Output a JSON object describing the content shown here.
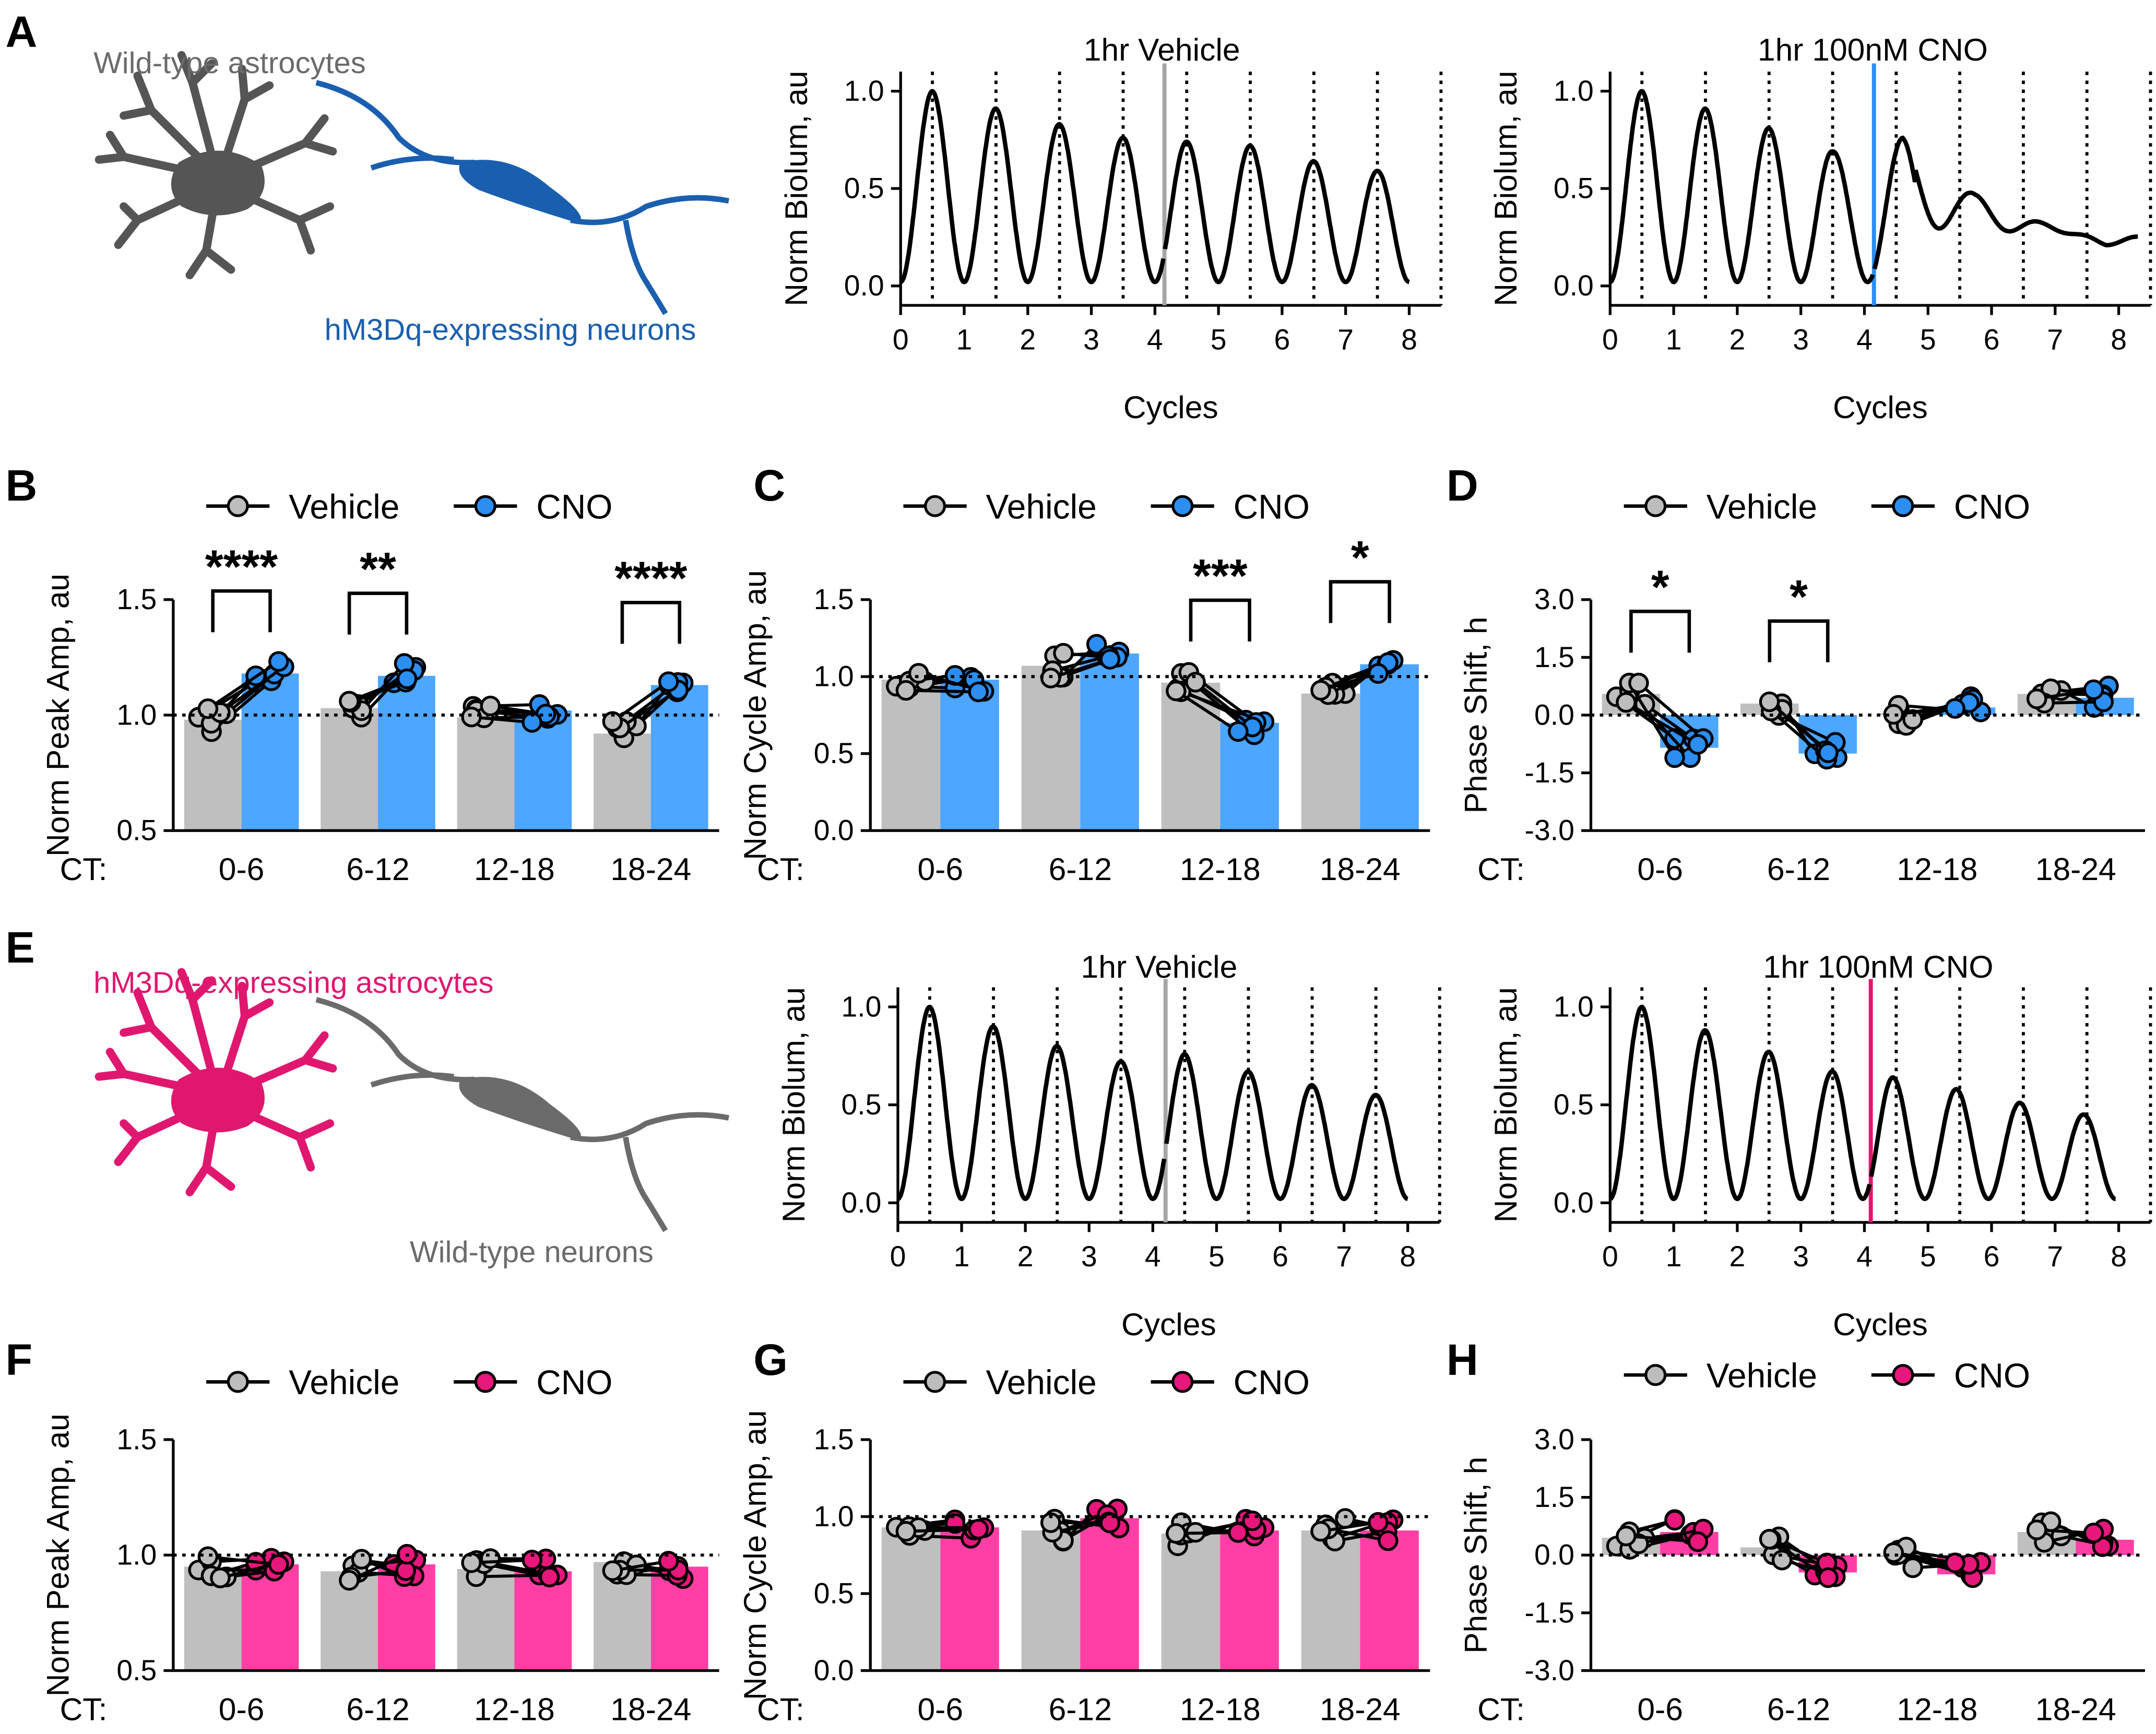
{
  "colors": {
    "vehicle": "#bfbfbf",
    "vehicle_dot": "#bdbdbd",
    "cno_blue": "#4da6ff",
    "cno_blue_dot": "#2b8ef0",
    "cno_pink": "#ff3fa6",
    "cno_pink_dot": "#e8177c",
    "astro_grey": "#555555",
    "neuron_blue": "#1a5faf",
    "astro_pink": "#e0176f",
    "neuron_grey": "#6b6b6b",
    "line": "#000000",
    "marker_grey": "#a6a6a6",
    "marker_blue": "#2b8ef0",
    "marker_pink": "#e0176f"
  },
  "panel_letters": {
    "A": "A",
    "B": "B",
    "C": "C",
    "D": "D",
    "E": "E",
    "F": "F",
    "G": "G",
    "H": "H"
  },
  "legend_labels": {
    "vehicle": "Vehicle",
    "cno": "CNO"
  },
  "ct_label": "CT:",
  "schematics": {
    "A": {
      "astro_label": "Wild-type astrocytes",
      "neuron_label": "hM3Dq-expressing neurons"
    },
    "E": {
      "astro_label": "hM3Dq-expressing astrocytes",
      "neuron_label": "Wild-type neurons"
    }
  },
  "chart_data": [
    {
      "id": "A-vehicle",
      "type": "line",
      "title": "1hr Vehicle",
      "xlabel": "Cycles",
      "ylabel": "Norm Biolum, au",
      "xlim": [
        0,
        8.5
      ],
      "ylim": [
        -0.1,
        1.1
      ],
      "xticks": [
        0,
        1,
        2,
        3,
        4,
        5,
        6,
        7,
        8
      ],
      "yticks": [
        0.0,
        0.5,
        1.0
      ],
      "ytick_labels": [
        "0.0",
        "0.5",
        "1.0"
      ],
      "peak_lines": [
        0.5,
        1.5,
        2.5,
        3.5,
        4.5,
        5.5,
        6.5,
        7.5,
        8.5
      ],
      "treatment_at": 4.15,
      "peaks": [
        {
          "x": 0.5,
          "y": 1.0
        },
        {
          "x": 1.5,
          "y": 0.91
        },
        {
          "x": 2.5,
          "y": 0.83
        },
        {
          "x": 3.5,
          "y": 0.76
        },
        {
          "x": 4.5,
          "y": 0.74
        },
        {
          "x": 5.5,
          "y": 0.72
        },
        {
          "x": 6.5,
          "y": 0.64
        },
        {
          "x": 7.5,
          "y": 0.59
        }
      ]
    },
    {
      "id": "A-cno",
      "type": "line",
      "title": "1hr 100nM CNO",
      "xlabel": "Cycles",
      "ylabel": "Norm Biolum, au",
      "xlim": [
        0,
        8.5
      ],
      "ylim": [
        -0.1,
        1.1
      ],
      "xticks": [
        0,
        1,
        2,
        3,
        4,
        5,
        6,
        7,
        8
      ],
      "yticks": [
        0.0,
        0.5,
        1.0
      ],
      "ytick_labels": [
        "0.0",
        "0.5",
        "1.0"
      ],
      "peak_lines": [
        0.5,
        1.5,
        2.5,
        3.5,
        4.5,
        5.5,
        6.5,
        7.5,
        8.5
      ],
      "treatment_at": 4.15,
      "peaks": [
        {
          "x": 0.5,
          "y": 1.0
        },
        {
          "x": 1.5,
          "y": 0.91
        },
        {
          "x": 2.5,
          "y": 0.81
        },
        {
          "x": 3.5,
          "y": 0.69
        },
        {
          "x": 4.6,
          "y": 0.76
        },
        {
          "x": 5.75,
          "y": 0.48
        },
        {
          "x": 6.8,
          "y": 0.35
        },
        {
          "x": 7.8,
          "y": 0.25
        }
      ]
    },
    {
      "id": "B",
      "type": "bar",
      "ylabel": "Norm Peak Amp, au",
      "categories": [
        "0-6",
        "6-12",
        "12-18",
        "18-24"
      ],
      "ylim": [
        0.5,
        1.5
      ],
      "yticks": [
        0.5,
        1.0,
        1.5
      ],
      "ytick_labels": [
        "0.5",
        "1.0",
        "1.5"
      ],
      "ref_line": 1.0,
      "cno_color": "blue",
      "series": [
        {
          "name": "Vehicle",
          "values": [
            0.98,
            1.03,
            0.99,
            0.92
          ]
        },
        {
          "name": "CNO",
          "values": [
            1.18,
            1.17,
            1.02,
            1.13
          ]
        }
      ],
      "significance": [
        "****",
        "**",
        "",
        "****"
      ]
    },
    {
      "id": "C",
      "type": "bar",
      "ylabel": "Norm Cycle Amp, au",
      "categories": [
        "0-6",
        "6-12",
        "12-18",
        "18-24"
      ],
      "ylim": [
        0.0,
        1.5
      ],
      "yticks": [
        0.0,
        0.5,
        1.0,
        1.5
      ],
      "ytick_labels": [
        "0.0",
        "0.5",
        "1.0",
        "1.5"
      ],
      "ref_line": 1.0,
      "cno_color": "blue",
      "series": [
        {
          "name": "Vehicle",
          "values": [
            0.98,
            1.07,
            0.96,
            0.89
          ]
        },
        {
          "name": "CNO",
          "values": [
            0.98,
            1.15,
            0.7,
            1.08
          ]
        }
      ],
      "significance": [
        "",
        "",
        "***",
        "*"
      ]
    },
    {
      "id": "D",
      "type": "bar",
      "ylabel": "Phase Shift, h",
      "categories": [
        "0-6",
        "6-12",
        "12-18",
        "18-24"
      ],
      "ylim": [
        -3.0,
        3.0
      ],
      "yticks": [
        -3.0,
        -1.5,
        0.0,
        1.5,
        3.0
      ],
      "ytick_labels": [
        "-3.0",
        "-1.5",
        "0.0",
        "1.5",
        "3.0"
      ],
      "ref_line": 0.0,
      "cno_color": "blue",
      "series": [
        {
          "name": "Vehicle",
          "values": [
            0.55,
            0.3,
            0.05,
            0.55
          ]
        },
        {
          "name": "CNO",
          "values": [
            -0.85,
            -1.0,
            0.2,
            0.45
          ]
        }
      ],
      "significance": [
        "*",
        "*",
        "",
        ""
      ]
    },
    {
      "id": "E-vehicle",
      "type": "line",
      "title": "1hr Vehicle",
      "xlabel": "Cycles",
      "ylabel": "Norm Biolum, au",
      "xlim": [
        0,
        8.5
      ],
      "ylim": [
        -0.1,
        1.1
      ],
      "xticks": [
        0,
        1,
        2,
        3,
        4,
        5,
        6,
        7,
        8
      ],
      "yticks": [
        0.0,
        0.5,
        1.0
      ],
      "ytick_labels": [
        "0.0",
        "0.5",
        "1.0"
      ],
      "peak_lines": [
        0.5,
        1.5,
        2.5,
        3.5,
        4.5,
        5.5,
        6.5,
        7.5,
        8.5
      ],
      "treatment_at": 4.2,
      "peaks": [
        {
          "x": 0.5,
          "y": 1.0
        },
        {
          "x": 1.5,
          "y": 0.9
        },
        {
          "x": 2.5,
          "y": 0.8
        },
        {
          "x": 3.5,
          "y": 0.72
        },
        {
          "x": 4.5,
          "y": 0.76
        },
        {
          "x": 5.5,
          "y": 0.67
        },
        {
          "x": 6.5,
          "y": 0.6
        },
        {
          "x": 7.5,
          "y": 0.55
        }
      ]
    },
    {
      "id": "E-cno",
      "type": "line",
      "title": "1hr 100nM CNO",
      "xlabel": "Cycles",
      "ylabel": "Norm Biolum, au",
      "xlim": [
        0,
        8.5
      ],
      "ylim": [
        -0.1,
        1.1
      ],
      "xticks": [
        0,
        1,
        2,
        3,
        4,
        5,
        6,
        7,
        8
      ],
      "yticks": [
        0.0,
        0.5,
        1.0
      ],
      "ytick_labels": [
        "0.0",
        "0.5",
        "1.0"
      ],
      "peak_lines": [
        0.5,
        1.5,
        2.5,
        3.5,
        4.5,
        5.5,
        6.5,
        7.5,
        8.5
      ],
      "treatment_at": 4.1,
      "peaks": [
        {
          "x": 0.5,
          "y": 1.0
        },
        {
          "x": 1.5,
          "y": 0.88
        },
        {
          "x": 2.5,
          "y": 0.77
        },
        {
          "x": 3.5,
          "y": 0.67
        },
        {
          "x": 4.45,
          "y": 0.64
        },
        {
          "x": 5.45,
          "y": 0.58
        },
        {
          "x": 6.45,
          "y": 0.51
        },
        {
          "x": 7.45,
          "y": 0.45
        }
      ]
    },
    {
      "id": "F",
      "type": "bar",
      "ylabel": "Norm Peak Amp, au",
      "categories": [
        "0-6",
        "6-12",
        "12-18",
        "18-24"
      ],
      "ylim": [
        0.5,
        1.5
      ],
      "yticks": [
        0.5,
        1.0,
        1.5
      ],
      "ytick_labels": [
        "0.5",
        "1.0",
        "1.5"
      ],
      "ref_line": 1.0,
      "cno_color": "pink",
      "series": [
        {
          "name": "Vehicle",
          "values": [
            0.95,
            0.93,
            0.94,
            0.97
          ]
        },
        {
          "name": "CNO",
          "values": [
            0.96,
            0.96,
            0.93,
            0.95
          ]
        }
      ],
      "significance": [
        "",
        "",
        "",
        ""
      ]
    },
    {
      "id": "G",
      "type": "bar",
      "ylabel": "Norm Cycle Amp, au",
      "categories": [
        "0-6",
        "6-12",
        "12-18",
        "18-24"
      ],
      "ylim": [
        0.0,
        1.5
      ],
      "yticks": [
        0.0,
        0.5,
        1.0,
        1.5
      ],
      "ytick_labels": [
        "0.0",
        "0.5",
        "1.0",
        "1.5"
      ],
      "ref_line": 1.0,
      "cno_color": "pink",
      "series": [
        {
          "name": "Vehicle",
          "values": [
            0.93,
            0.91,
            0.89,
            0.91
          ]
        },
        {
          "name": "CNO",
          "values": [
            0.93,
            0.99,
            0.91,
            0.91
          ]
        }
      ],
      "significance": [
        "",
        "",
        "",
        ""
      ]
    },
    {
      "id": "H",
      "type": "bar",
      "ylabel": "Phase Shift, h",
      "categories": [
        "0-6",
        "6-12",
        "12-18",
        "18-24"
      ],
      "ylim": [
        -3.0,
        3.0
      ],
      "yticks": [
        -3.0,
        -1.5,
        0.0,
        1.5,
        3.0
      ],
      "ytick_labels": [
        "-3.0",
        "-1.5",
        "0.0",
        "1.5",
        "3.0"
      ],
      "ref_line": 0.0,
      "cno_color": "pink",
      "series": [
        {
          "name": "Vehicle",
          "values": [
            0.45,
            0.2,
            -0.05,
            0.6
          ]
        },
        {
          "name": "CNO",
          "values": [
            0.6,
            -0.45,
            -0.5,
            0.4
          ]
        }
      ],
      "significance": [
        "",
        "",
        "",
        ""
      ]
    }
  ]
}
